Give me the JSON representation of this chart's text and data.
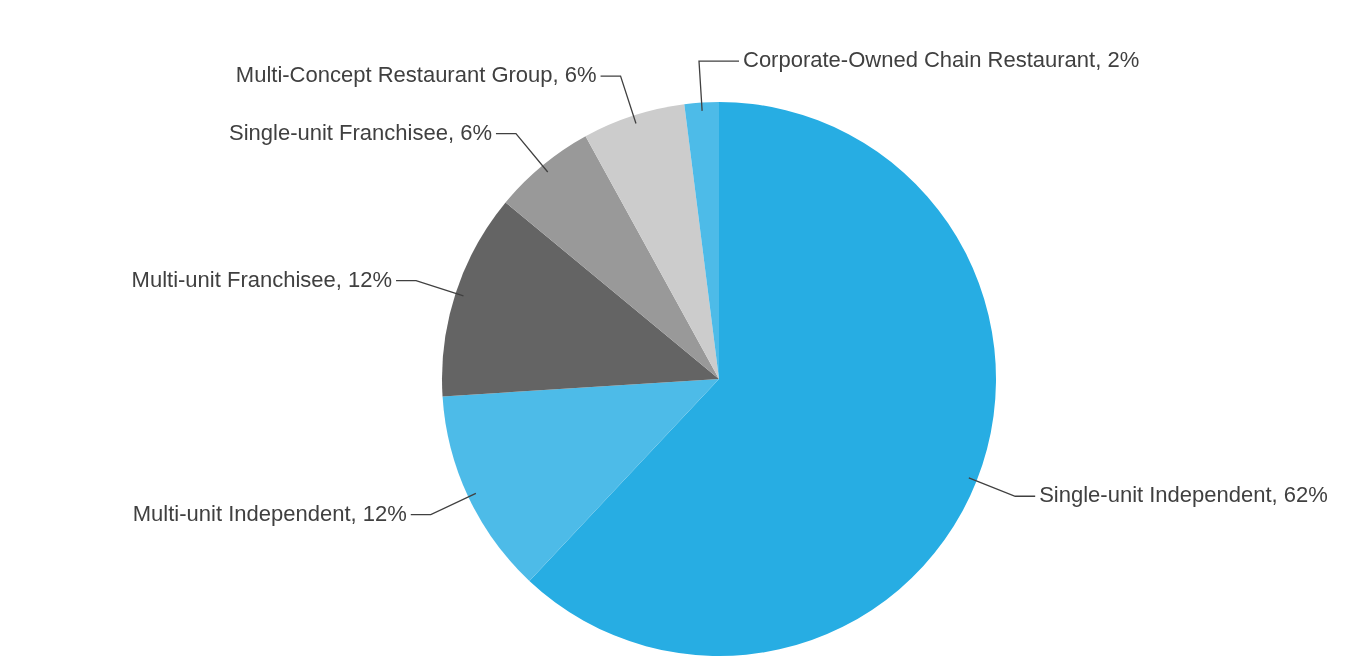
{
  "chart_data": {
    "type": "pie",
    "categories": [
      "Single-unit Independent",
      "Multi-unit Independent",
      "Multi-unit Franchisee",
      "Single-unit Franchisee",
      "Multi-Concept Restaurant Group",
      "Corporate-Owned Chain Restaurant"
    ],
    "values": [
      62,
      12,
      12,
      6,
      6,
      2
    ],
    "value_labels": [
      "62%",
      "12%",
      "12%",
      "6%",
      "6%",
      "2%"
    ],
    "colors": [
      "#27ade3",
      "#4dbbe8",
      "#646464",
      "#999999",
      "#cccccc",
      "#4dbbe8"
    ],
    "legend": false
  }
}
